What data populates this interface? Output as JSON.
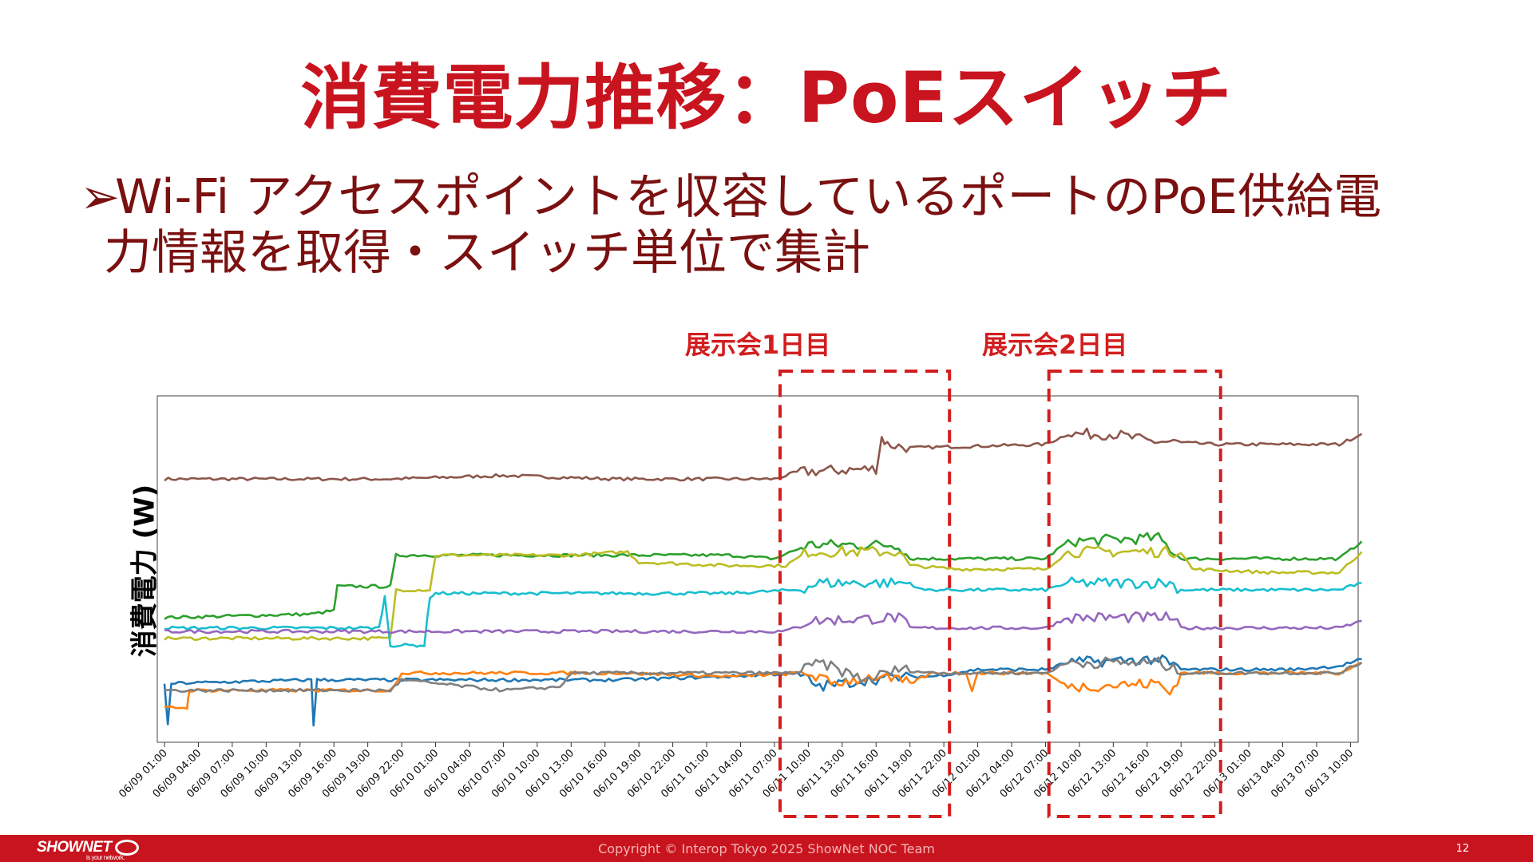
{
  "slide": {
    "title": "消費電力推移：PoEスイッチ",
    "bullet_marker": "➢",
    "bullet_line1": "Wi-Fi アクセスポイントを収容しているポートのPoE供給電",
    "bullet_line2": "力情報を取得・スイッチ単位で集計"
  },
  "annotations": {
    "day1_label": "展示会1日目",
    "day2_label": "展示会2日目",
    "highlight_color": "#d21e1e"
  },
  "footer": {
    "logo": "SHOWNET",
    "logo_tagline": "is your network.",
    "copyright": "Copyright © Interop Tokyo 2025 ShowNet NOC Team",
    "page_number": "12"
  },
  "chart_data": {
    "type": "line",
    "ylabel": "消費電力 (W)",
    "xlabel": "",
    "y_ticks_shown": false,
    "grid": false,
    "x_tick_labels": [
      "06/09 01:00",
      "06/09 04:00",
      "06/09 07:00",
      "06/09 10:00",
      "06/09 13:00",
      "06/09 16:00",
      "06/09 19:00",
      "06/09 22:00",
      "06/10 01:00",
      "06/10 04:00",
      "06/10 07:00",
      "06/10 10:00",
      "06/10 13:00",
      "06/10 16:00",
      "06/10 19:00",
      "06/10 22:00",
      "06/11 01:00",
      "06/11 04:00",
      "06/11 07:00",
      "06/11 10:00",
      "06/11 13:00",
      "06/11 16:00",
      "06/11 19:00",
      "06/11 22:00",
      "06/12 01:00",
      "06/12 04:00",
      "06/12 07:00",
      "06/12 10:00",
      "06/12 13:00",
      "06/12 16:00",
      "06/12 19:00",
      "06/12 22:00",
      "06/13 01:00",
      "06/13 04:00",
      "06/13 07:00",
      "06/13 10:00"
    ],
    "x_range_hours": [
      0,
      106
    ],
    "y_range": [
      0,
      100
    ],
    "highlight_periods": [
      {
        "label": "展示会1日目",
        "start_hour": 54.5,
        "end_hour": 69.5
      },
      {
        "label": "展示会2日目",
        "start_hour": 78.3,
        "end_hour": 93.5
      }
    ],
    "series": [
      {
        "color": "#8c564b",
        "points": [
          [
            0,
            76
          ],
          [
            20,
            76
          ],
          [
            30,
            77
          ],
          [
            40,
            76
          ],
          [
            54,
            76
          ],
          [
            56,
            78
          ],
          [
            63,
            79
          ],
          [
            63.5,
            88
          ],
          [
            64,
            86
          ],
          [
            66,
            85
          ],
          [
            78,
            86
          ],
          [
            80,
            89
          ],
          [
            84,
            89
          ],
          [
            87,
            87
          ],
          [
            93,
            86
          ],
          [
            100,
            86
          ],
          [
            104,
            86
          ],
          [
            106,
            89
          ]
        ]
      },
      {
        "color": "#2ca02c",
        "points": [
          [
            0,
            36
          ],
          [
            13,
            37
          ],
          [
            15,
            38
          ],
          [
            15.3,
            45
          ],
          [
            20,
            45
          ],
          [
            20.5,
            54
          ],
          [
            24,
            54
          ],
          [
            30,
            54
          ],
          [
            40,
            54
          ],
          [
            50,
            54
          ],
          [
            54,
            53
          ],
          [
            57,
            57
          ],
          [
            65,
            57
          ],
          [
            66,
            53
          ],
          [
            70,
            53
          ],
          [
            78,
            53
          ],
          [
            80,
            58
          ],
          [
            88,
            59
          ],
          [
            90,
            53
          ],
          [
            98,
            53
          ],
          [
            104,
            53
          ],
          [
            106,
            58
          ]
        ]
      },
      {
        "color": "#bcbd22",
        "points": [
          [
            0,
            30
          ],
          [
            20,
            30
          ],
          [
            20.5,
            44
          ],
          [
            23.5,
            44
          ],
          [
            24,
            54
          ],
          [
            36,
            54
          ],
          [
            41,
            55
          ],
          [
            42,
            52
          ],
          [
            50,
            51
          ],
          [
            55,
            51
          ],
          [
            57,
            55
          ],
          [
            65,
            55
          ],
          [
            66,
            51
          ],
          [
            70,
            50
          ],
          [
            78,
            50
          ],
          [
            80,
            55
          ],
          [
            90,
            55
          ],
          [
            91,
            50
          ],
          [
            98,
            49
          ],
          [
            104,
            49
          ],
          [
            106,
            55
          ]
        ]
      },
      {
        "color": "#17becf",
        "points": [
          [
            0,
            33
          ],
          [
            19,
            33
          ],
          [
            19.5,
            42
          ],
          [
            20,
            28
          ],
          [
            23,
            28
          ],
          [
            23.5,
            42
          ],
          [
            24,
            43
          ],
          [
            30,
            43
          ],
          [
            40,
            43
          ],
          [
            50,
            43
          ],
          [
            56,
            44
          ],
          [
            58,
            46
          ],
          [
            66,
            46
          ],
          [
            67,
            44
          ],
          [
            72,
            44
          ],
          [
            78,
            44
          ],
          [
            80,
            46
          ],
          [
            89,
            46
          ],
          [
            90,
            44
          ],
          [
            98,
            44
          ],
          [
            104,
            44
          ],
          [
            106,
            46
          ]
        ]
      },
      {
        "color": "#9467bd",
        "points": [
          [
            0,
            32
          ],
          [
            20,
            32
          ],
          [
            30,
            32
          ],
          [
            40,
            32
          ],
          [
            50,
            32
          ],
          [
            55,
            32
          ],
          [
            57,
            35
          ],
          [
            65,
            36
          ],
          [
            66,
            33
          ],
          [
            78,
            33
          ],
          [
            80,
            36
          ],
          [
            89,
            36
          ],
          [
            90,
            33
          ],
          [
            100,
            33
          ],
          [
            104,
            33
          ],
          [
            106,
            35
          ]
        ]
      },
      {
        "color": "#1f77b4",
        "points": [
          [
            0,
            17
          ],
          [
            0.3,
            5
          ],
          [
            0.6,
            17
          ],
          [
            13,
            18
          ],
          [
            13.2,
            5
          ],
          [
            13.5,
            18
          ],
          [
            30,
            18
          ],
          [
            40,
            18
          ],
          [
            50,
            19
          ],
          [
            56,
            20
          ],
          [
            58,
            16
          ],
          [
            62,
            18
          ],
          [
            66,
            19
          ],
          [
            68,
            19
          ],
          [
            72,
            21
          ],
          [
            78,
            21
          ],
          [
            80,
            23
          ],
          [
            88,
            24
          ],
          [
            90,
            21
          ],
          [
            100,
            21
          ],
          [
            104,
            22
          ],
          [
            106,
            24
          ]
        ]
      },
      {
        "color": "#ff7f0e",
        "points": [
          [
            0,
            10
          ],
          [
            2,
            10
          ],
          [
            2.2,
            15
          ],
          [
            20,
            15
          ],
          [
            21,
            20
          ],
          [
            35,
            20
          ],
          [
            40,
            20
          ],
          [
            50,
            19
          ],
          [
            57,
            20
          ],
          [
            59,
            17
          ],
          [
            63,
            19
          ],
          [
            66,
            17
          ],
          [
            68,
            20
          ],
          [
            71,
            20
          ],
          [
            71.5,
            15
          ],
          [
            72,
            20
          ],
          [
            78,
            20
          ],
          [
            80,
            16
          ],
          [
            88,
            17
          ],
          [
            89,
            14
          ],
          [
            90,
            20
          ],
          [
            100,
            20
          ],
          [
            104,
            20
          ],
          [
            106,
            23
          ]
        ]
      },
      {
        "color": "#7f7f7f",
        "points": [
          [
            0,
            15
          ],
          [
            20,
            15
          ],
          [
            21,
            18
          ],
          [
            30,
            15
          ],
          [
            35,
            16
          ],
          [
            36,
            20
          ],
          [
            45,
            20
          ],
          [
            50,
            20
          ],
          [
            56,
            20
          ],
          [
            58,
            23
          ],
          [
            62,
            18
          ],
          [
            65,
            21
          ],
          [
            68,
            20
          ],
          [
            72,
            20
          ],
          [
            78,
            20
          ],
          [
            80,
            23
          ],
          [
            88,
            23
          ],
          [
            90,
            20
          ],
          [
            100,
            20
          ],
          [
            104,
            20
          ],
          [
            106,
            23
          ]
        ]
      }
    ]
  }
}
